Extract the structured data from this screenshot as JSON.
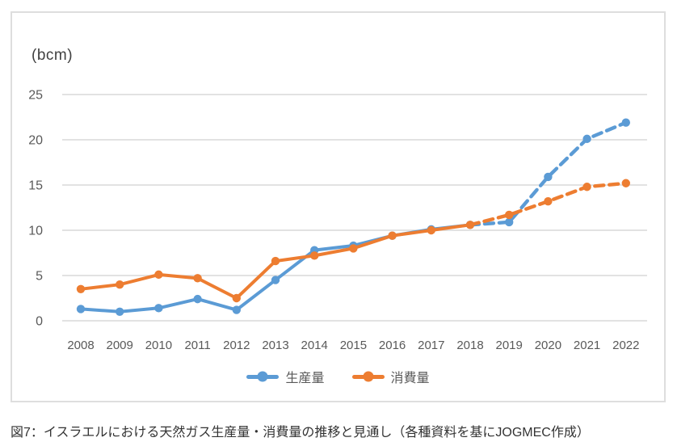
{
  "figure": {
    "unit_label": "(bcm)",
    "caption": "図7：イスラエルにおける天然ガス生産量・消費量の推移と見通し（各種資料を基にJOGMEC作成）"
  },
  "chart_data": {
    "type": "line",
    "title": "",
    "categories": [
      "2008",
      "2009",
      "2010",
      "2011",
      "2012",
      "2013",
      "2014",
      "2015",
      "2016",
      "2017",
      "2018",
      "2019",
      "2020",
      "2021",
      "2022"
    ],
    "series": [
      {
        "name": "生産量",
        "color": "#5B9BD5",
        "values": [
          1.3,
          1.0,
          1.4,
          2.4,
          1.2,
          4.5,
          7.8,
          8.3,
          9.4,
          10.1,
          10.6,
          10.9,
          15.9,
          20.1,
          21.9
        ],
        "dashed_from_index": 10
      },
      {
        "name": "消費量",
        "color": "#ED7D31",
        "values": [
          3.5,
          4.0,
          5.1,
          4.7,
          2.5,
          6.6,
          7.2,
          8.0,
          9.4,
          10.0,
          10.6,
          11.7,
          13.2,
          14.8,
          15.2
        ],
        "dashed_from_index": 10
      }
    ],
    "ylabel": "(bcm)",
    "xlabel": "",
    "ylim": [
      0,
      25
    ],
    "yticks": [
      0,
      5,
      10,
      15,
      20,
      25
    ],
    "grid": "horizontal-only",
    "legend_position": "bottom"
  },
  "colors": {
    "grid": "#d9d9d9",
    "axis_text": "#595959",
    "frame_border": "#dedede",
    "caption_text": "#333333"
  }
}
